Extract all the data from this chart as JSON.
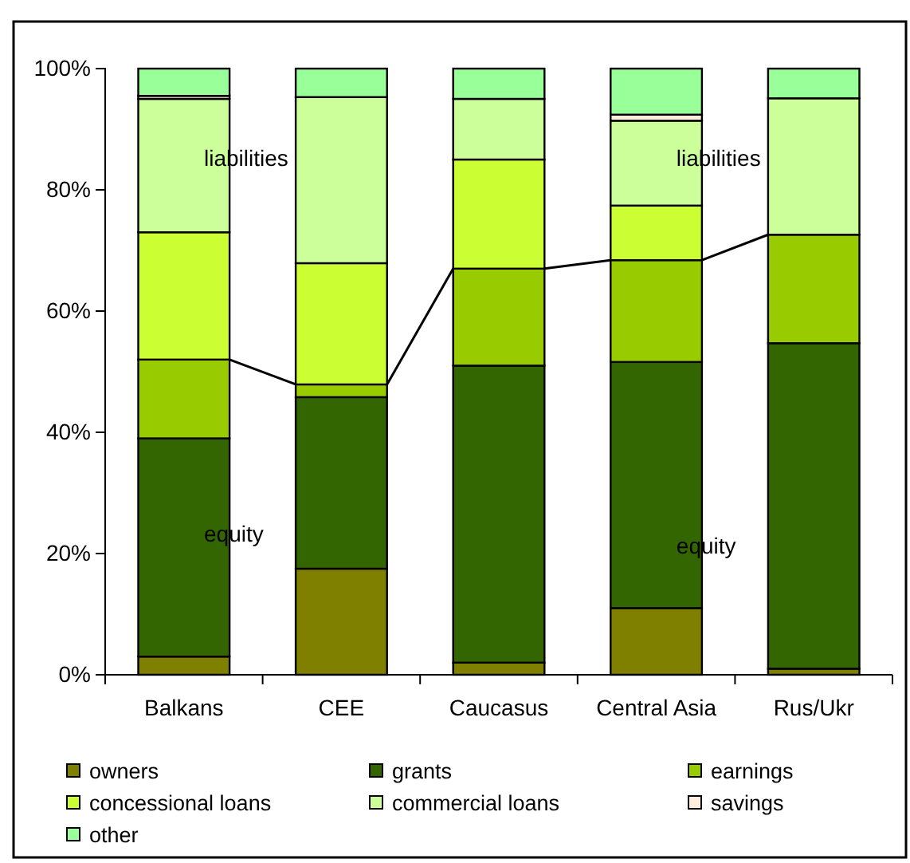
{
  "chart_data": {
    "type": "bar",
    "stacked": true,
    "categories": [
      "Balkans",
      "CEE",
      "Caucasus",
      "Central Asia",
      "Rus/Ukr"
    ],
    "series": [
      {
        "name": "owners",
        "color": "#808000",
        "values": [
          3,
          17.5,
          2,
          11,
          1
        ]
      },
      {
        "name": "grants",
        "color": "#336600",
        "values": [
          36,
          28.3,
          49,
          40.6,
          53.7
        ]
      },
      {
        "name": "earnings",
        "color": "#99cc00",
        "values": [
          13,
          2.1,
          16,
          16.8,
          17.9
        ]
      },
      {
        "name": "concessional loans",
        "color": "#ccff33",
        "values": [
          21,
          20,
          18,
          9,
          0
        ]
      },
      {
        "name": "commercial loans",
        "color": "#ccff99",
        "values": [
          22,
          27.4,
          10,
          14,
          22.5
        ]
      },
      {
        "name": "savings",
        "color": "#ffeedd",
        "values": [
          0.5,
          0,
          0,
          1,
          0
        ]
      },
      {
        "name": "other",
        "color": "#99ff99",
        "values": [
          4.5,
          4.7,
          5,
          7.6,
          4.9
        ]
      }
    ],
    "ylim": [
      0,
      100
    ],
    "yticks": [
      {
        "value": 0,
        "label": "0%"
      },
      {
        "value": 20,
        "label": "20%"
      },
      {
        "value": 40,
        "label": "40%"
      },
      {
        "value": 60,
        "label": "60%"
      },
      {
        "value": 80,
        "label": "80%"
      },
      {
        "value": 100,
        "label": "100%"
      }
    ],
    "grid": false,
    "legend": "bottom",
    "annotations": [
      "liabilities",
      "liabilities",
      "equity",
      "equity"
    ]
  }
}
